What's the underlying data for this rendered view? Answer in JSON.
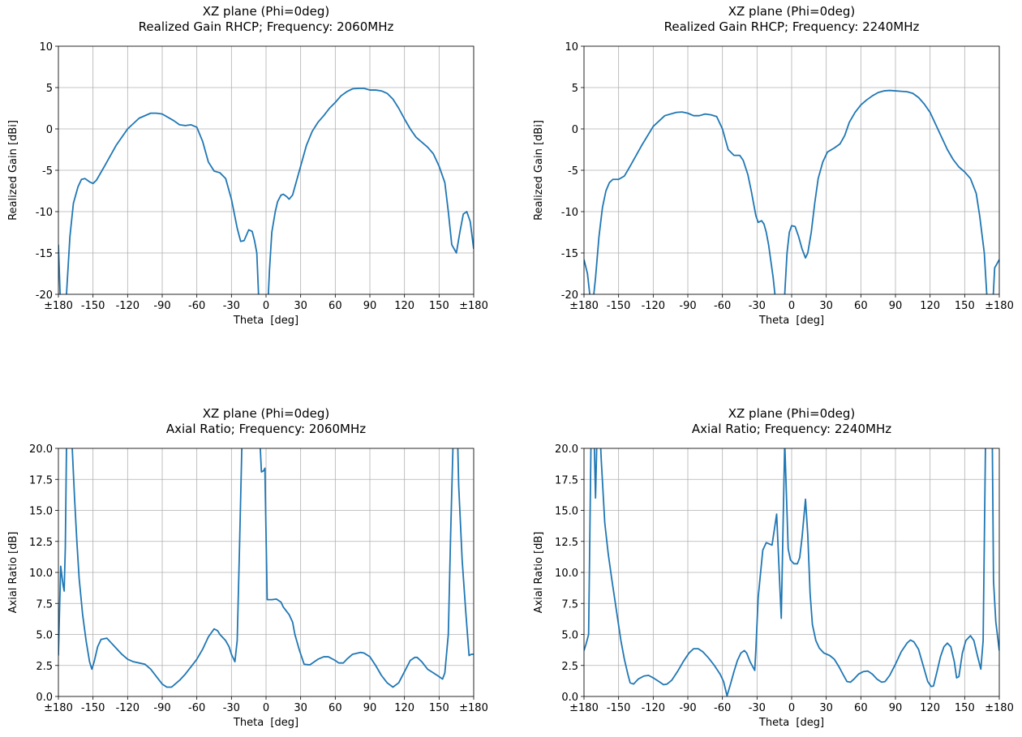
{
  "chart_data": [
    {
      "type": "line",
      "title": "XZ plane (Phi=0deg)",
      "subtitle": "Realized Gain RHCP; Frequency: 2060MHz",
      "x_label": "Theta  [deg]",
      "y_label": "Realized Gain [dBi]",
      "color": "#1f77b4",
      "grid": true,
      "xlim": [
        -180,
        180
      ],
      "ylim": [
        -20,
        10
      ],
      "xticks": [
        {
          "value": -180,
          "label": "±180"
        },
        -150,
        -120,
        -90,
        -60,
        -30,
        0,
        30,
        60,
        90,
        120,
        150,
        {
          "value": 180,
          "label": "±180"
        }
      ],
      "yticks": [
        -20,
        -15,
        -10,
        -5,
        0,
        5,
        10
      ],
      "x": [
        -180,
        -178,
        -176,
        -173,
        -170,
        -167,
        -163,
        -160,
        -157,
        -153,
        -150,
        -147,
        -140,
        -130,
        -120,
        -110,
        -100,
        -95,
        -90,
        -80,
        -75,
        -70,
        -65,
        -60,
        -55,
        -50,
        -45,
        -40,
        -35,
        -30,
        -25,
        -22,
        -19,
        -15,
        -12,
        -10,
        -8,
        -5,
        0,
        2,
        3,
        5,
        8,
        10,
        13,
        15,
        18,
        20,
        23,
        25,
        30,
        35,
        40,
        45,
        50,
        55,
        60,
        65,
        70,
        75,
        80,
        85,
        90,
        95,
        100,
        105,
        110,
        115,
        120,
        125,
        130,
        135,
        140,
        145,
        150,
        155,
        158,
        161,
        165,
        168,
        171,
        174,
        177,
        180
      ],
      "values": [
        -14,
        -22,
        -25,
        -20,
        -13,
        -9,
        -7,
        -6.1,
        -6,
        -6.4,
        -6.6,
        -6.2,
        -4.5,
        -2,
        0,
        1.3,
        1.9,
        1.9,
        1.8,
        1,
        0.5,
        0.4,
        0.5,
        0.2,
        -1.5,
        -4,
        -5.1,
        -5.3,
        -6,
        -8.5,
        -12,
        -13.6,
        -13.5,
        -12.2,
        -12.4,
        -13.5,
        -15,
        -25,
        -25,
        -20,
        -17,
        -12.5,
        -10,
        -8.8,
        -8,
        -7.9,
        -8.2,
        -8.5,
        -8,
        -7,
        -4.5,
        -2,
        -0.3,
        0.8,
        1.6,
        2.5,
        3.2,
        4,
        4.5,
        4.85,
        4.9,
        4.9,
        4.7,
        4.7,
        4.6,
        4.3,
        3.6,
        2.5,
        1.2,
        0,
        -1,
        -1.6,
        -2.2,
        -3,
        -4.5,
        -6.5,
        -10,
        -14,
        -15,
        -12.5,
        -10.3,
        -10,
        -11.2,
        -14.5
      ]
    },
    {
      "type": "line",
      "title": "XZ plane (Phi=0deg)",
      "subtitle": "Realized Gain RHCP; Frequency: 2240MHz",
      "x_label": "Theta  [deg]",
      "y_label": "Realized Gain [dBi]",
      "color": "#1f77b4",
      "grid": true,
      "xlim": [
        -180,
        180
      ],
      "ylim": [
        -20,
        10
      ],
      "xticks": [
        {
          "value": -180,
          "label": "±180"
        },
        -150,
        -120,
        -90,
        -60,
        -30,
        0,
        30,
        60,
        90,
        120,
        150,
        {
          "value": 180,
          "label": "±180"
        }
      ],
      "yticks": [
        -20,
        -15,
        -10,
        -5,
        0,
        5,
        10
      ],
      "x": [
        -180,
        -177,
        -175,
        -173,
        -170,
        -167,
        -164,
        -161,
        -158,
        -155,
        -150,
        -145,
        -140,
        -130,
        -120,
        -110,
        -100,
        -95,
        -90,
        -85,
        -80,
        -75,
        -70,
        -65,
        -60,
        -55,
        -50,
        -45,
        -42,
        -38,
        -35,
        -31,
        -29,
        -26,
        -24,
        -22,
        -20,
        -16,
        -13,
        -11,
        -8,
        -6,
        -4,
        -2,
        0,
        3,
        6,
        9,
        12,
        14,
        17,
        20,
        23,
        27,
        31,
        37,
        42,
        46,
        50,
        55,
        60,
        65,
        70,
        75,
        80,
        85,
        90,
        95,
        100,
        105,
        110,
        115,
        120,
        125,
        130,
        135,
        140,
        145,
        150,
        155,
        160,
        163,
        167,
        170,
        173,
        176,
        178,
        180
      ],
      "values": [
        -15.8,
        -17.5,
        -20,
        -22,
        -18,
        -13,
        -9.5,
        -7.5,
        -6.5,
        -6.1,
        -6.1,
        -5.7,
        -4.5,
        -2,
        0.3,
        1.6,
        2,
        2.05,
        1.9,
        1.6,
        1.6,
        1.8,
        1.7,
        1.5,
        0,
        -2.5,
        -3.2,
        -3.2,
        -3.8,
        -5.5,
        -7.5,
        -10.5,
        -11.3,
        -11.1,
        -11.5,
        -12.5,
        -14,
        -18,
        -22,
        -25,
        -25,
        -20,
        -15,
        -12.5,
        -11.7,
        -11.8,
        -13,
        -14.5,
        -15.6,
        -15,
        -12.5,
        -9,
        -6,
        -4,
        -2.8,
        -2.3,
        -1.8,
        -0.8,
        0.8,
        2,
        2.9,
        3.5,
        4,
        4.4,
        4.6,
        4.65,
        4.6,
        4.55,
        4.5,
        4.3,
        3.8,
        3,
        2,
        0.5,
        -1,
        -2.5,
        -3.7,
        -4.6,
        -5.2,
        -6,
        -7.8,
        -10.5,
        -15,
        -22,
        -25,
        -16.8,
        -16.3,
        -15.8
      ]
    },
    {
      "type": "line",
      "title": "XZ plane (Phi=0deg)",
      "subtitle": "Axial Ratio; Frequency: 2060MHz",
      "x_label": "Theta  [deg]",
      "y_label": "Axial Ratio [dB]",
      "color": "#1f77b4",
      "grid": true,
      "xlim": [
        -180,
        180
      ],
      "ylim": [
        0,
        20
      ],
      "xticks": [
        {
          "value": -180,
          "label": "±180"
        },
        -150,
        -120,
        -90,
        -60,
        -30,
        0,
        30,
        60,
        90,
        120,
        150,
        {
          "value": 180,
          "label": "±180"
        }
      ],
      "yticks": [
        {
          "value": 0,
          "label": "0.0"
        },
        2.5,
        {
          "value": 5,
          "label": "5.0"
        },
        7.5,
        {
          "value": 10,
          "label": "10.0"
        },
        12.5,
        {
          "value": 15,
          "label": "15.0"
        },
        17.5,
        {
          "value": 20,
          "label": "20.0"
        }
      ],
      "x": [
        -180,
        -179,
        -178,
        -176,
        -175,
        -174,
        -173,
        -172,
        -170,
        -168,
        -166,
        -164,
        -162,
        -159,
        -156,
        -153,
        -151,
        -149,
        -146,
        -143,
        -138,
        -135,
        -130,
        -125,
        -120,
        -115,
        -110,
        -105,
        -100,
        -95,
        -90,
        -86,
        -82,
        -80,
        -75,
        -70,
        -65,
        -60,
        -55,
        -50,
        -45,
        -42,
        -40,
        -35,
        -32,
        -30,
        -27,
        -25,
        -23,
        -21,
        -20,
        -6,
        -5,
        -4,
        -2,
        -1,
        1,
        5,
        9,
        13,
        15,
        20,
        23,
        25,
        29,
        33,
        38,
        45,
        50,
        54,
        60,
        63,
        67,
        70,
        75,
        82,
        85,
        90,
        95,
        100,
        105,
        110,
        115,
        120,
        125,
        129,
        131,
        135,
        140,
        145,
        150,
        153,
        155,
        158,
        160,
        162,
        163,
        165,
        167,
        170,
        173,
        176,
        178,
        180
      ],
      "values": [
        3.3,
        7,
        10.5,
        9,
        8.5,
        12,
        20,
        25,
        25,
        20,
        16,
        12.5,
        9.5,
        6.6,
        4.5,
        2.8,
        2.2,
        2.8,
        4,
        4.6,
        4.7,
        4.4,
        3.9,
        3.4,
        3,
        2.8,
        2.7,
        2.6,
        2.2,
        1.6,
        1,
        0.75,
        0.75,
        0.9,
        1.3,
        1.8,
        2.4,
        3,
        3.8,
        4.8,
        5.45,
        5.3,
        5,
        4.5,
        4,
        3.4,
        2.8,
        4.5,
        12,
        20,
        25,
        25,
        20,
        18.1,
        18.2,
        18.4,
        7.8,
        7.8,
        7.85,
        7.6,
        7.2,
        6.6,
        6,
        5,
        3.7,
        2.6,
        2.55,
        3,
        3.2,
        3.2,
        2.9,
        2.7,
        2.7,
        3,
        3.4,
        3.55,
        3.5,
        3.2,
        2.5,
        1.7,
        1.1,
        0.75,
        1.1,
        2,
        2.9,
        3.15,
        3.15,
        2.8,
        2.2,
        1.9,
        1.6,
        1.4,
        1.9,
        5,
        13,
        20,
        25,
        25,
        17,
        11,
        7,
        3.3,
        3.4,
        3.4
      ]
    },
    {
      "type": "line",
      "title": "XZ plane (Phi=0deg)",
      "subtitle": "Axial Ratio; Frequency: 2240MHz",
      "x_label": "Theta  [deg]",
      "y_label": "Axial Ratio [dB]",
      "color": "#1f77b4",
      "grid": true,
      "xlim": [
        -180,
        180
      ],
      "ylim": [
        0,
        20
      ],
      "xticks": [
        {
          "value": -180,
          "label": "±180"
        },
        -150,
        -120,
        -90,
        -60,
        -30,
        0,
        30,
        60,
        90,
        120,
        150,
        {
          "value": 180,
          "label": "±180"
        }
      ],
      "yticks": [
        {
          "value": 0,
          "label": "0.0"
        },
        2.5,
        {
          "value": 5,
          "label": "5.0"
        },
        7.5,
        {
          "value": 10,
          "label": "10.0"
        },
        12.5,
        {
          "value": 15,
          "label": "15.0"
        },
        17.5,
        {
          "value": 20,
          "label": "20.0"
        }
      ],
      "x": [
        -180,
        -178,
        -176,
        -174,
        -173,
        -172,
        -171,
        -170,
        -169,
        -168,
        -165,
        -162,
        -159,
        -156,
        -152,
        -148,
        -145,
        -142,
        -140,
        -137,
        -133,
        -128,
        -124,
        -120,
        -115,
        -111,
        -108,
        -104,
        -99,
        -94,
        -89,
        -85,
        -81,
        -77,
        -72,
        -67,
        -62,
        -59,
        -56,
        -53,
        -50,
        -47,
        -44,
        -41,
        -39,
        -36,
        -32,
        -31,
        -29,
        -25,
        -22,
        -17,
        -13,
        -9,
        -6,
        -3,
        -1,
        2,
        5,
        7,
        9,
        12,
        14,
        16,
        18,
        21,
        24,
        28,
        33,
        37,
        41,
        45,
        48,
        51,
        54,
        58,
        62,
        66,
        70,
        74,
        78,
        81,
        85,
        90,
        95,
        100,
        103,
        106,
        110,
        114,
        118,
        121,
        123,
        126,
        129,
        132,
        135,
        138,
        141,
        143,
        145,
        148,
        151,
        155,
        158,
        161,
        164,
        166,
        168,
        169,
        172,
        174,
        175,
        177,
        180
      ],
      "values": [
        3.7,
        4.3,
        5,
        20,
        25,
        25,
        20,
        16,
        20,
        25,
        19,
        14,
        11.5,
        9.5,
        7,
        4.5,
        3,
        1.8,
        1.1,
        1,
        1.4,
        1.65,
        1.7,
        1.5,
        1.2,
        0.95,
        1,
        1.3,
        2,
        2.8,
        3.5,
        3.85,
        3.85,
        3.6,
        3.1,
        2.5,
        1.8,
        1.2,
        0.05,
        1,
        2,
        2.9,
        3.5,
        3.7,
        3.5,
        2.8,
        2.1,
        3.8,
        8,
        11.8,
        12.4,
        12.2,
        14.7,
        6.3,
        20.5,
        11.9,
        11,
        10.7,
        10.7,
        11.2,
        12.8,
        15.9,
        13,
        8.3,
        5.8,
        4.5,
        3.9,
        3.5,
        3.3,
        3,
        2.4,
        1.7,
        1.2,
        1.15,
        1.4,
        1.8,
        2,
        2.05,
        1.8,
        1.4,
        1.15,
        1.2,
        1.7,
        2.6,
        3.6,
        4.3,
        4.55,
        4.4,
        3.8,
        2.5,
        1.2,
        0.8,
        0.85,
        2,
        3.2,
        4,
        4.3,
        4,
        2.8,
        1.5,
        1.6,
        3.5,
        4.5,
        4.9,
        4.5,
        3.3,
        2.2,
        4.5,
        20,
        25,
        25,
        20,
        9.3,
        6,
        3.7
      ]
    }
  ]
}
